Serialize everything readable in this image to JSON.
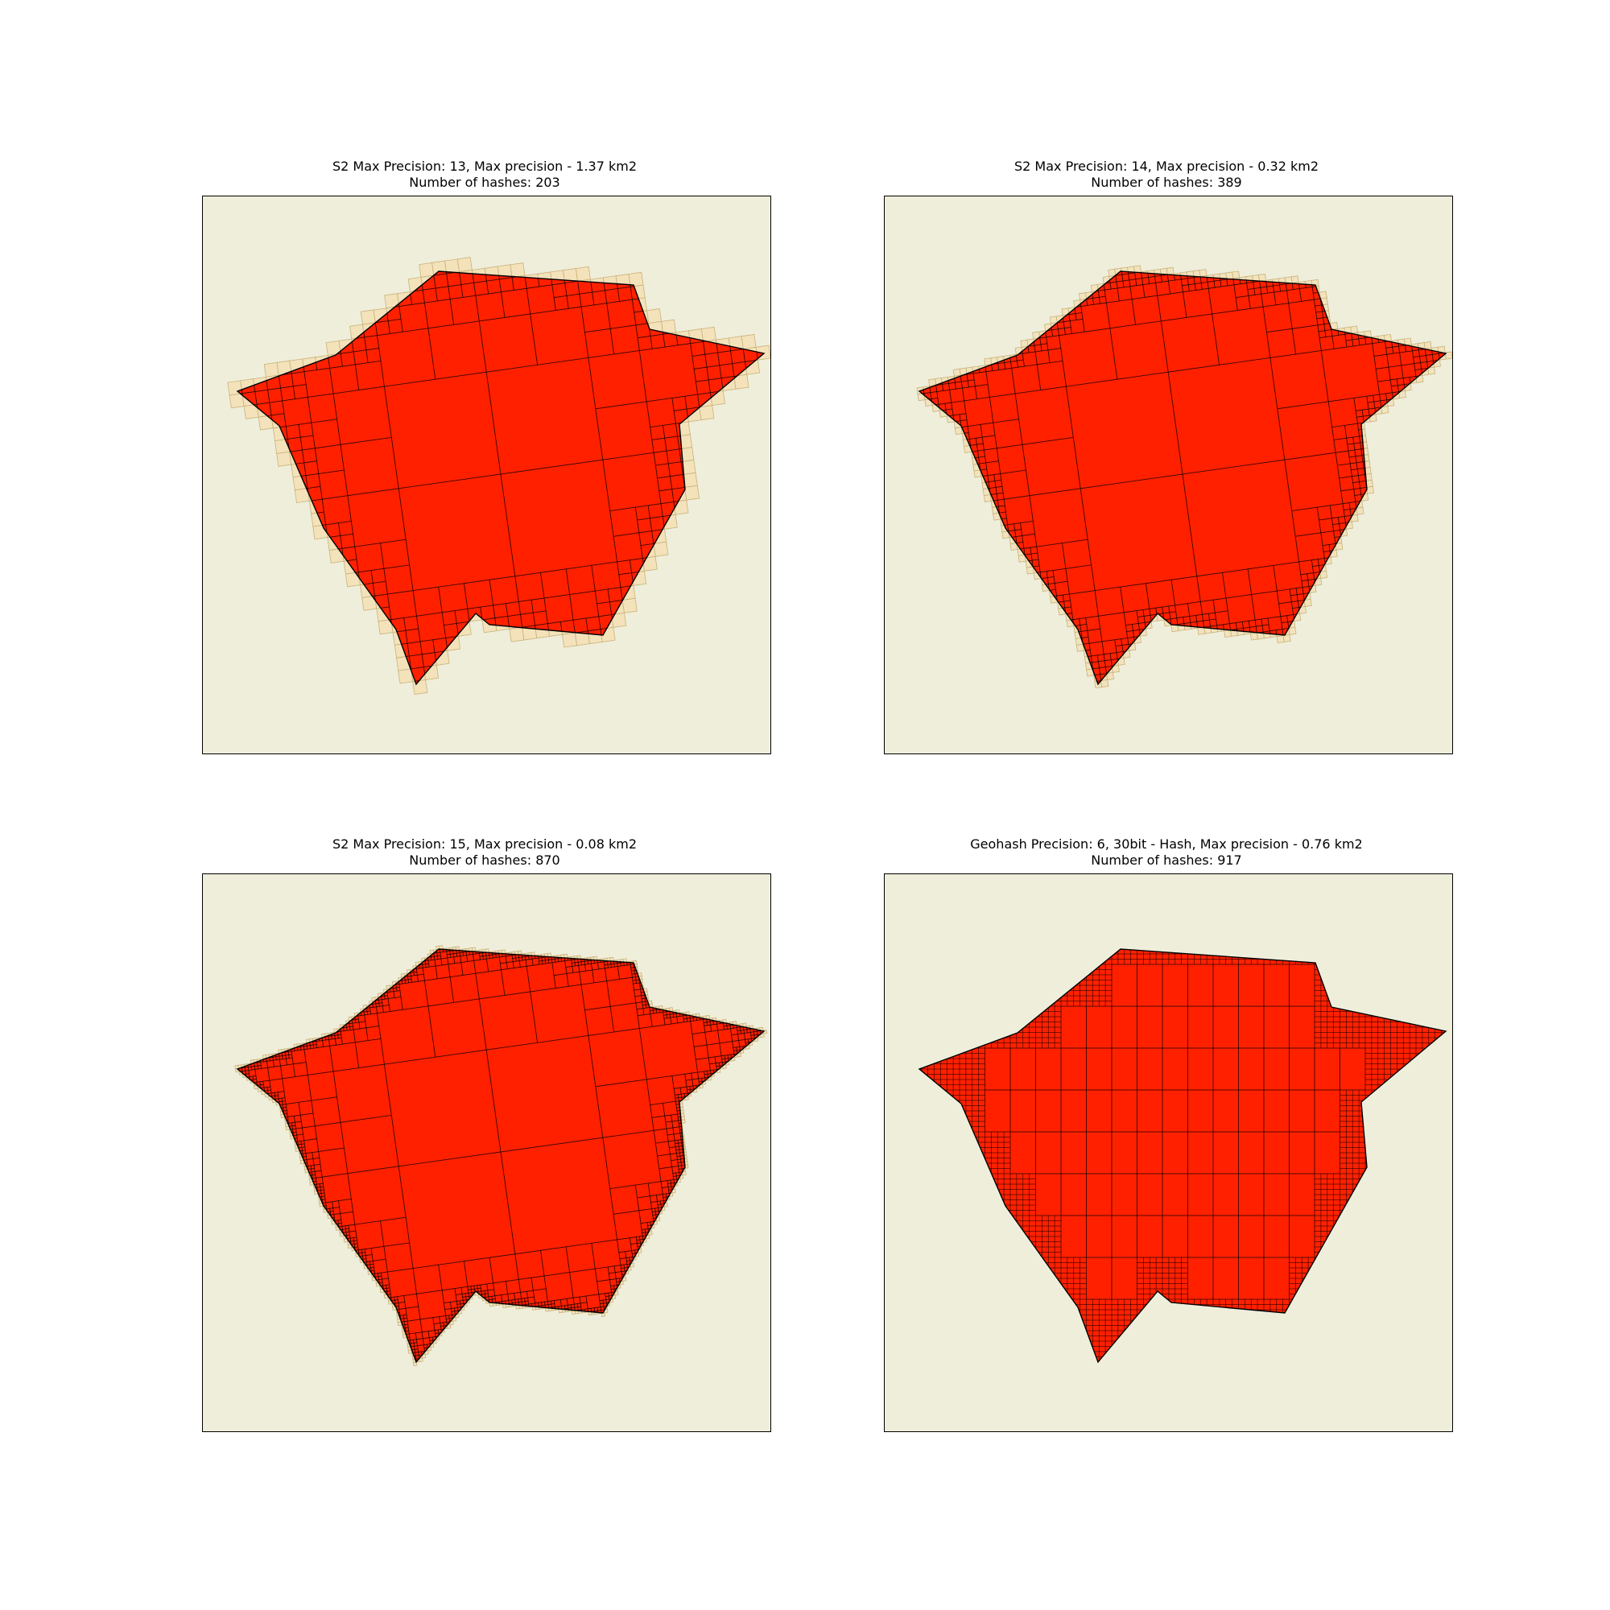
{
  "figure": {
    "background_color": "#ffffff",
    "map_background_color": "#efeedb",
    "polygon_fill_color": "#ff2000",
    "cell_edge_color": "#000000",
    "overhang_cell_color": "#f5deb0"
  },
  "panels": [
    {
      "title_line1": "S2 Max Precision: 13, Max precision - 1.37 km2",
      "title_line2": "Number of hashes: 203",
      "grid": "s2",
      "precision": 13,
      "hash_count": 203
    },
    {
      "title_line1": "S2 Max Precision: 14, Max precision - 0.32 km2",
      "title_line2": "Number of hashes: 389",
      "grid": "s2",
      "precision": 14,
      "hash_count": 389
    },
    {
      "title_line1": "S2 Max Precision: 15,  Max precision - 0.08 km2",
      "title_line2": "Number of hashes: 870",
      "grid": "s2",
      "precision": 15,
      "hash_count": 870
    },
    {
      "title_line1": "Geohash Precision: 6, 30bit - Hash, Max precision - 0.76 km2",
      "title_line2": "Number of hashes: 917",
      "grid": "geohash",
      "precision": 6,
      "hash_count": 917
    }
  ]
}
